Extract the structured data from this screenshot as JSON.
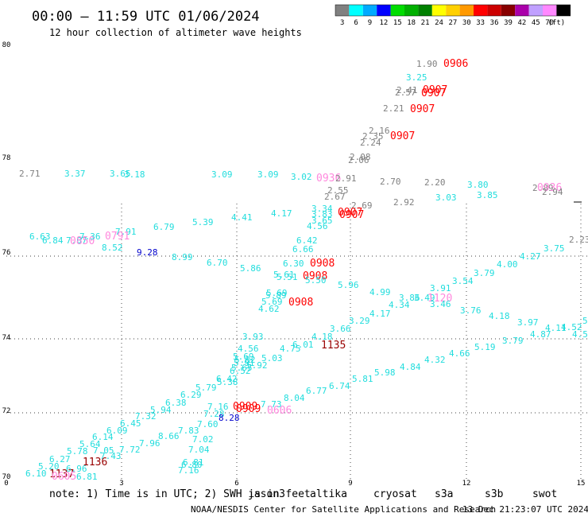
{
  "chart_data": {
    "type": "scatter",
    "title": "00:00 — 11:59 UTC 01/06/2024",
    "subtitle": "12 hour collection of altimeter wave heights",
    "x_ticks": [
      "0",
      "3",
      "6",
      "9",
      "12",
      "15"
    ],
    "y_ticks": [
      "80",
      "78",
      "76",
      "74",
      "72",
      "70"
    ],
    "legend": {
      "unit": "(ft)",
      "bins": [
        {
          "label": "3",
          "color": "#808080"
        },
        {
          "label": "6",
          "color": "#00ffff"
        },
        {
          "label": "9",
          "color": "#00aaff"
        },
        {
          "label": "12",
          "color": "#0000ff"
        },
        {
          "label": "15",
          "color": "#00dd00"
        },
        {
          "label": "18",
          "color": "#00b000"
        },
        {
          "label": "21",
          "color": "#008000"
        },
        {
          "label": "24",
          "color": "#ffff00"
        },
        {
          "label": "27",
          "color": "#ffd000"
        },
        {
          "label": "30",
          "color": "#ff9900"
        },
        {
          "label": "33",
          "color": "#ff0000"
        },
        {
          "label": "36",
          "color": "#cc0000"
        },
        {
          "label": "39",
          "color": "#880000"
        },
        {
          "label": "42",
          "color": "#aa00aa"
        },
        {
          "label": "45",
          "color": "#c0a0ff"
        },
        {
          "label": "70",
          "color": "#ff88ff"
        },
        {
          "label": "",
          "color": "#000000"
        }
      ]
    },
    "points": [
      {
        "text": "1.90",
        "color": "#808080",
        "size": "s"
      },
      {
        "text": "0906",
        "color": "#ff0000",
        "size": "b"
      },
      {
        "text": "3.25",
        "color": "#22dddd",
        "size": "s"
      },
      {
        "text": "2.41",
        "color": "#808080",
        "size": "s"
      },
      {
        "text": "0907",
        "color": "#ff0000",
        "size": "b"
      },
      {
        "text": "2.57",
        "color": "#808080",
        "size": "s"
      },
      {
        "text": "0907",
        "color": "#ff0000",
        "size": "b"
      },
      {
        "text": "2.21",
        "color": "#808080",
        "size": "s"
      },
      {
        "text": "0907",
        "color": "#ff0000",
        "size": "b"
      },
      {
        "text": "2.16",
        "color": "#808080",
        "size": "s"
      },
      {
        "text": "2.35",
        "color": "#808080",
        "size": "s"
      },
      {
        "text": "2.24",
        "color": "#808080",
        "size": "s"
      },
      {
        "text": "0907",
        "color": "#ff0000",
        "size": "b"
      },
      {
        "text": "2.08",
        "color": "#808080",
        "size": "s"
      },
      {
        "text": "2.06",
        "color": "#808080",
        "size": "s"
      },
      {
        "text": "2.71",
        "color": "#808080",
        "size": "s"
      },
      {
        "text": "3.37",
        "color": "#22dddd",
        "size": "s"
      },
      {
        "text": "3.65",
        "color": "#22dddd",
        "size": "s"
      },
      {
        "text": "3.18",
        "color": "#22dddd",
        "size": "s"
      },
      {
        "text": "3.09",
        "color": "#22dddd",
        "size": "s"
      },
      {
        "text": "3.09",
        "color": "#22dddd",
        "size": "s"
      },
      {
        "text": "3.02",
        "color": "#22dddd",
        "size": "s"
      },
      {
        "text": "0936",
        "color": "#ff88dd",
        "size": "b"
      },
      {
        "text": "2.91",
        "color": "#808080",
        "size": "s"
      },
      {
        "text": "2.70",
        "color": "#808080",
        "size": "s"
      },
      {
        "text": "2.20",
        "color": "#808080",
        "size": "s"
      },
      {
        "text": "3.80",
        "color": "#22dddd",
        "size": "s"
      },
      {
        "text": "2.89",
        "color": "#808080",
        "size": "s"
      },
      {
        "text": "0936",
        "color": "#ff88dd",
        "size": "b"
      },
      {
        "text": "2.94",
        "color": "#808080",
        "size": "s"
      },
      {
        "text": "2.55",
        "color": "#808080",
        "size": "s"
      },
      {
        "text": "2.67",
        "color": "#808080",
        "size": "s"
      },
      {
        "text": "3.03",
        "color": "#22dddd",
        "size": "s"
      },
      {
        "text": "3.85",
        "color": "#22dddd",
        "size": "s"
      },
      {
        "text": "2.69",
        "color": "#808080",
        "size": "s"
      },
      {
        "text": "2.92",
        "color": "#808080",
        "size": "s"
      },
      {
        "text": "3.34",
        "color": "#22dddd",
        "size": "s"
      },
      {
        "text": "3.83",
        "color": "#22dddd",
        "size": "s"
      },
      {
        "text": "0907",
        "color": "#ff0000",
        "size": "b"
      },
      {
        "text": "0907",
        "color": "#ff0000",
        "size": "b"
      },
      {
        "text": "4.17",
        "color": "#22dddd",
        "size": "s"
      },
      {
        "text": "3.65",
        "color": "#22dddd",
        "size": "s"
      },
      {
        "text": "4.41",
        "color": "#22dddd",
        "size": "s"
      },
      {
        "text": "4.56",
        "color": "#22dddd",
        "size": "s"
      },
      {
        "text": "5.39",
        "color": "#22dddd",
        "size": "s"
      },
      {
        "text": "6.79",
        "color": "#22dddd",
        "size": "s"
      },
      {
        "text": "7.91",
        "color": "#22dddd",
        "size": "s"
      },
      {
        "text": "6.63",
        "color": "#22dddd",
        "size": "s"
      },
      {
        "text": "6.84",
        "color": "#22dddd",
        "size": "s"
      },
      {
        "text": "7.07",
        "color": "#22dddd",
        "size": "s"
      },
      {
        "text": "0850",
        "color": "#ff88dd",
        "size": "b"
      },
      {
        "text": "7.36",
        "color": "#22dddd",
        "size": "s"
      },
      {
        "text": "0791",
        "color": "#ff88dd",
        "size": "b"
      },
      {
        "text": "8.52",
        "color": "#22dddd",
        "size": "s"
      },
      {
        "text": "9.28",
        "color": "#0000cc",
        "size": "s"
      },
      {
        "text": "8.99",
        "color": "#22dddd",
        "size": "s"
      },
      {
        "text": "6.70",
        "color": "#22dddd",
        "size": "s"
      },
      {
        "text": "6.42",
        "color": "#22dddd",
        "size": "s"
      },
      {
        "text": "6.66",
        "color": "#22dddd",
        "size": "s"
      },
      {
        "text": "2.23",
        "color": "#808080",
        "size": "s"
      },
      {
        "text": "3.75",
        "color": "#22dddd",
        "size": "s"
      },
      {
        "text": "4.27",
        "color": "#22dddd",
        "size": "s"
      },
      {
        "text": "4.00",
        "color": "#22dddd",
        "size": "s"
      },
      {
        "text": "3.79",
        "color": "#22dddd",
        "size": "s"
      },
      {
        "text": "5.86",
        "color": "#22dddd",
        "size": "s"
      },
      {
        "text": "6.30",
        "color": "#22dddd",
        "size": "s"
      },
      {
        "text": "0908",
        "color": "#ff0000",
        "size": "b"
      },
      {
        "text": "5.61",
        "color": "#22dddd",
        "size": "s"
      },
      {
        "text": "5.51",
        "color": "#22dddd",
        "size": "s"
      },
      {
        "text": "0908",
        "color": "#ff0000",
        "size": "b"
      },
      {
        "text": "5.50",
        "color": "#22dddd",
        "size": "s"
      },
      {
        "text": "5.96",
        "color": "#22dddd",
        "size": "s"
      },
      {
        "text": "3.54",
        "color": "#22dddd",
        "size": "s"
      },
      {
        "text": "3.91",
        "color": "#22dddd",
        "size": "s"
      },
      {
        "text": "4.99",
        "color": "#22dddd",
        "size": "s"
      },
      {
        "text": "3.86",
        "color": "#22dddd",
        "size": "s"
      },
      {
        "text": "3.49",
        "color": "#22dddd",
        "size": "s"
      },
      {
        "text": "1120",
        "color": "#ff88dd",
        "size": "b"
      },
      {
        "text": "5.69",
        "color": "#22dddd",
        "size": "s"
      },
      {
        "text": "5.89",
        "color": "#22dddd",
        "size": "s"
      },
      {
        "text": "5.69",
        "color": "#22dddd",
        "size": "s"
      },
      {
        "text": "0908",
        "color": "#ff0000",
        "size": "b"
      },
      {
        "text": "4.62",
        "color": "#22dddd",
        "size": "s"
      },
      {
        "text": "4.34",
        "color": "#22dddd",
        "size": "s"
      },
      {
        "text": "3.46",
        "color": "#22dddd",
        "size": "s"
      },
      {
        "text": "3.76",
        "color": "#22dddd",
        "size": "s"
      },
      {
        "text": "4.17",
        "color": "#22dddd",
        "size": "s"
      },
      {
        "text": "4.18",
        "color": "#22dddd",
        "size": "s"
      },
      {
        "text": "3.29",
        "color": "#22dddd",
        "size": "s"
      },
      {
        "text": "3.66",
        "color": "#22dddd",
        "size": "s"
      },
      {
        "text": "3.97",
        "color": "#22dddd",
        "size": "s"
      },
      {
        "text": "4.11",
        "color": "#22dddd",
        "size": "s"
      },
      {
        "text": "4.52",
        "color": "#22dddd",
        "size": "s"
      },
      {
        "text": "5",
        "color": "#22dddd",
        "size": "s"
      },
      {
        "text": "4.87",
        "color": "#22dddd",
        "size": "s"
      },
      {
        "text": "4.5",
        "color": "#22dddd",
        "size": "s"
      },
      {
        "text": "3.79",
        "color": "#22dddd",
        "size": "s"
      },
      {
        "text": "3.93",
        "color": "#22dddd",
        "size": "s"
      },
      {
        "text": "4.18",
        "color": "#22dddd",
        "size": "s"
      },
      {
        "text": "6.01",
        "color": "#22dddd",
        "size": "s"
      },
      {
        "text": "1135",
        "color": "#990000",
        "size": "b"
      },
      {
        "text": "4.56",
        "color": "#22dddd",
        "size": "s"
      },
      {
        "text": "4.75",
        "color": "#22dddd",
        "size": "s"
      },
      {
        "text": "5.03",
        "color": "#22dddd",
        "size": "s"
      },
      {
        "text": "5.19",
        "color": "#22dddd",
        "size": "s"
      },
      {
        "text": "4.66",
        "color": "#22dddd",
        "size": "s"
      },
      {
        "text": "4.32",
        "color": "#22dddd",
        "size": "s"
      },
      {
        "text": "4.84",
        "color": "#22dddd",
        "size": "s"
      },
      {
        "text": "5.98",
        "color": "#22dddd",
        "size": "s"
      },
      {
        "text": "5.81",
        "color": "#22dddd",
        "size": "s"
      },
      {
        "text": "6.74",
        "color": "#22dddd",
        "size": "s"
      },
      {
        "text": "6.77",
        "color": "#22dddd",
        "size": "s"
      },
      {
        "text": "8.04",
        "color": "#22dddd",
        "size": "s"
      },
      {
        "text": "5.69",
        "color": "#22dddd",
        "size": "s"
      },
      {
        "text": "5.82",
        "color": "#22dddd",
        "size": "s"
      },
      {
        "text": "5.91",
        "color": "#22dddd",
        "size": "s"
      },
      {
        "text": "5.65",
        "color": "#22dddd",
        "size": "s"
      },
      {
        "text": "5.92",
        "color": "#22dddd",
        "size": "s"
      },
      {
        "text": "6.52",
        "color": "#22dddd",
        "size": "s"
      },
      {
        "text": "6.42",
        "color": "#22dddd",
        "size": "s"
      },
      {
        "text": "5.38",
        "color": "#22dddd",
        "size": "s"
      },
      {
        "text": "5.79",
        "color": "#22dddd",
        "size": "s"
      },
      {
        "text": "6.29",
        "color": "#22dddd",
        "size": "s"
      },
      {
        "text": "6.38",
        "color": "#22dddd",
        "size": "s"
      },
      {
        "text": "5.94",
        "color": "#22dddd",
        "size": "s"
      },
      {
        "text": "7.32",
        "color": "#22dddd",
        "size": "s"
      },
      {
        "text": "6.45",
        "color": "#22dddd",
        "size": "s"
      },
      {
        "text": "6.09",
        "color": "#22dddd",
        "size": "s"
      },
      {
        "text": "6.14",
        "color": "#22dddd",
        "size": "s"
      },
      {
        "text": "5.64",
        "color": "#22dddd",
        "size": "s"
      },
      {
        "text": "5.78",
        "color": "#22dddd",
        "size": "s"
      },
      {
        "text": "6.27",
        "color": "#22dddd",
        "size": "s"
      },
      {
        "text": "5.20",
        "color": "#22dddd",
        "size": "s"
      },
      {
        "text": "6.10",
        "color": "#22dddd",
        "size": "s"
      },
      {
        "text": "1137",
        "color": "#990000",
        "size": "b"
      },
      {
        "text": "0605",
        "color": "#ff88dd",
        "size": "b"
      },
      {
        "text": "6.81",
        "color": "#22dddd",
        "size": "s"
      },
      {
        "text": "6.96",
        "color": "#22dddd",
        "size": "s"
      },
      {
        "text": "1136",
        "color": "#990000",
        "size": "b"
      },
      {
        "text": "7.05",
        "color": "#22dddd",
        "size": "s"
      },
      {
        "text": "7.43",
        "color": "#22dddd",
        "size": "s"
      },
      {
        "text": "7.72",
        "color": "#22dddd",
        "size": "s"
      },
      {
        "text": "7.96",
        "color": "#22dddd",
        "size": "s"
      },
      {
        "text": "8.66",
        "color": "#22dddd",
        "size": "s"
      },
      {
        "text": "7.83",
        "color": "#22dddd",
        "size": "s"
      },
      {
        "text": "7.60",
        "color": "#22dddd",
        "size": "s"
      },
      {
        "text": "7.02",
        "color": "#22dddd",
        "size": "s"
      },
      {
        "text": "7.04",
        "color": "#22dddd",
        "size": "s"
      },
      {
        "text": "6.81",
        "color": "#22dddd",
        "size": "s"
      },
      {
        "text": "6.80",
        "color": "#22dddd",
        "size": "s"
      },
      {
        "text": "7.16",
        "color": "#22dddd",
        "size": "s"
      },
      {
        "text": "7.16",
        "color": "#22dddd",
        "size": "s"
      },
      {
        "text": "7.28",
        "color": "#22dddd",
        "size": "s"
      },
      {
        "text": "8.28",
        "color": "#0000cc",
        "size": "s"
      },
      {
        "text": "0909",
        "color": "#ff0000",
        "size": "b"
      },
      {
        "text": "0909",
        "color": "#ff0000",
        "size": "b"
      },
      {
        "text": "7.73",
        "color": "#22dddd",
        "size": "s"
      },
      {
        "text": "0606",
        "color": "#ff88dd",
        "size": "b"
      }
    ]
  },
  "note": {
    "prefix": "note:  1) Time is in UTC; 2) SWH is in feet",
    "sats": [
      {
        "name": "jason3",
        "color": "#008000"
      },
      {
        "name": "altika",
        "color": "#ff9900"
      },
      {
        "name": "cryosat",
        "color": "#ff0000"
      },
      {
        "name": "s3a",
        "color": "#990000"
      },
      {
        "name": "s3b",
        "color": "#c0a0ff"
      },
      {
        "name": "swot",
        "color": "#ff88ff"
      }
    ]
  },
  "credit": {
    "left": "NOAA/NESDIS Center for Satellite Applications and Research",
    "right": "13 Dec 21:23:07 UTC 2024"
  }
}
